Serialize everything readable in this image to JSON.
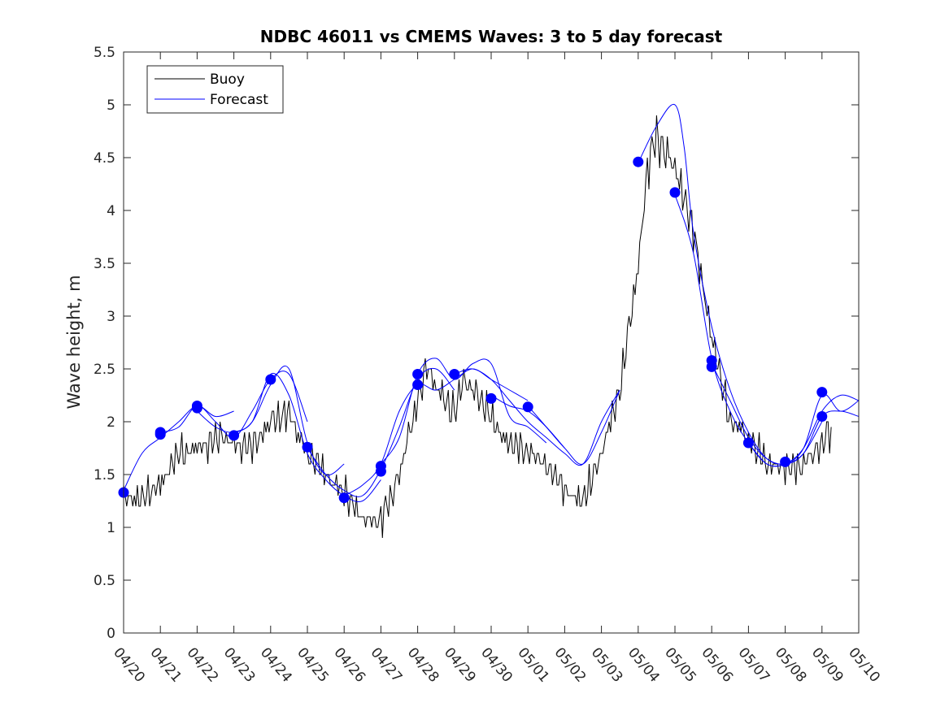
{
  "chart_data": {
    "type": "line",
    "title": "NDBC 46011 vs CMEMS Waves: 3 to 5 day forecast",
    "xlabel": "",
    "ylabel": "Wave height, m",
    "xlim": [
      "04/20",
      "05/10"
    ],
    "ylim": [
      0,
      5.5
    ],
    "yticks": [
      "0",
      "0.5",
      "1",
      "1.5",
      "2",
      "2.5",
      "3",
      "3.5",
      "4",
      "4.5",
      "5",
      "5.5"
    ],
    "xticks": [
      "04/20",
      "04/21",
      "04/22",
      "04/23",
      "04/24",
      "04/25",
      "04/26",
      "04/27",
      "04/28",
      "04/29",
      "04/30",
      "05/01",
      "05/02",
      "05/03",
      "05/04",
      "05/05",
      "05/06",
      "05/07",
      "05/08",
      "05/09",
      "05/10"
    ],
    "grid": false,
    "legend_position": "top-left",
    "series": [
      {
        "name": "Buoy",
        "color": "#000000",
        "points": [
          [
            "04/20 00:00",
            1.3
          ],
          [
            "04/20 12:00",
            1.25
          ],
          [
            "04/21 00:00",
            1.4
          ],
          [
            "04/21 12:00",
            1.7
          ],
          [
            "04/22 00:00",
            1.75
          ],
          [
            "04/22 12:00",
            1.85
          ],
          [
            "04/23 00:00",
            1.8
          ],
          [
            "04/23 12:00",
            1.75
          ],
          [
            "04/24 00:00",
            2.0
          ],
          [
            "04/24 12:00",
            2.1
          ],
          [
            "04/25 00:00",
            1.7
          ],
          [
            "04/25 12:00",
            1.5
          ],
          [
            "04/26 00:00",
            1.35
          ],
          [
            "04/26 12:00",
            1.1
          ],
          [
            "04/27 00:00",
            1.05
          ],
          [
            "04/27 12:00",
            1.5
          ],
          [
            "04/28 00:00",
            2.2
          ],
          [
            "04/28 06:00",
            2.55
          ],
          [
            "04/28 12:00",
            2.3
          ],
          [
            "04/29 00:00",
            2.1
          ],
          [
            "04/29 06:00",
            2.4
          ],
          [
            "04/29 12:00",
            2.3
          ],
          [
            "04/30 00:00",
            2.05
          ],
          [
            "04/30 12:00",
            1.8
          ],
          [
            "05/01 00:00",
            1.7
          ],
          [
            "05/01 12:00",
            1.6
          ],
          [
            "05/02 00:00",
            1.35
          ],
          [
            "05/02 12:00",
            1.25
          ],
          [
            "05/03 00:00",
            1.7
          ],
          [
            "05/03 12:00",
            2.3
          ],
          [
            "05/04 00:00",
            3.5
          ],
          [
            "05/04 06:00",
            4.4
          ],
          [
            "05/04 12:00",
            4.7
          ],
          [
            "05/05 00:00",
            4.4
          ],
          [
            "05/05 12:00",
            3.8
          ],
          [
            "05/06 00:00",
            2.8
          ],
          [
            "05/06 12:00",
            2.0
          ],
          [
            "05/07 00:00",
            1.85
          ],
          [
            "05/07 12:00",
            1.6
          ],
          [
            "05/08 00:00",
            1.55
          ],
          [
            "05/08 12:00",
            1.6
          ],
          [
            "05/09 00:00",
            1.8
          ],
          [
            "05/09 06:00",
            1.95
          ]
        ]
      },
      {
        "name": "Forecast",
        "color": "#0000ff",
        "segments": [
          [
            [
              "04/20 00:00",
              1.35
            ],
            [
              "04/20 12:00",
              1.7
            ],
            [
              "04/21 00:00",
              1.85
            ],
            [
              "04/21 12:00",
              2.0
            ],
            [
              "04/22 00:00",
              2.15
            ],
            [
              "04/22 12:00",
              2.05
            ],
            [
              "04/23 00:00",
              2.1
            ]
          ],
          [
            [
              "04/21 00:00",
              1.9
            ],
            [
              "04/21 12:00",
              1.95
            ],
            [
              "04/22 00:00",
              2.15
            ],
            [
              "04/22 12:00",
              2.0
            ],
            [
              "04/23 00:00",
              1.85
            ],
            [
              "04/23 12:00",
              2.1
            ],
            [
              "04/24 00:00",
              2.4
            ],
            [
              "04/24 12:00",
              2.45
            ],
            [
              "04/25 00:00",
              2.0
            ]
          ],
          [
            [
              "04/22 00:00",
              2.1
            ],
            [
              "04/22 12:00",
              1.95
            ],
            [
              "04/23 00:00",
              1.9
            ],
            [
              "04/23 12:00",
              2.0
            ],
            [
              "04/24 00:00",
              2.35
            ],
            [
              "04/24 12:00",
              2.5
            ],
            [
              "04/25 00:00",
              1.8
            ],
            [
              "04/25 12:00",
              1.5
            ],
            [
              "04/26 00:00",
              1.6
            ]
          ],
          [
            [
              "04/23 00:00",
              1.9
            ],
            [
              "04/23 12:00",
              2.0
            ],
            [
              "04/24 00:00",
              2.45
            ],
            [
              "04/24 12:00",
              2.25
            ],
            [
              "04/25 00:00",
              1.7
            ],
            [
              "04/25 12:00",
              1.45
            ],
            [
              "04/26 00:00",
              1.3
            ],
            [
              "04/26 12:00",
              1.25
            ],
            [
              "04/27 00:00",
              1.45
            ]
          ],
          [
            [
              "04/25 00:00",
              1.75
            ],
            [
              "04/25 12:00",
              1.5
            ],
            [
              "04/26 00:00",
              1.35
            ],
            [
              "04/26 12:00",
              1.3
            ],
            [
              "04/27 00:00",
              1.55
            ],
            [
              "04/27 12:00",
              1.95
            ],
            [
              "04/28 00:00",
              2.4
            ],
            [
              "04/28 12:00",
              2.5
            ],
            [
              "04/29 00:00",
              2.3
            ]
          ],
          [
            [
              "04/26 00:00",
              1.3
            ],
            [
              "04/26 12:00",
              1.4
            ],
            [
              "04/27 00:00",
              1.6
            ],
            [
              "04/27 12:00",
              2.1
            ],
            [
              "04/28 00:00",
              2.35
            ],
            [
              "04/28 12:00",
              2.3
            ],
            [
              "04/29 00:00",
              2.4
            ],
            [
              "04/29 12:00",
              2.5
            ],
            [
              "04/30 00:00",
              2.4
            ],
            [
              "04/30 12:00",
              2.3
            ],
            [
              "05/01 00:00",
              2.2
            ]
          ],
          [
            [
              "04/27 00:00",
              1.6
            ],
            [
              "04/27 12:00",
              1.85
            ],
            [
              "04/28 00:00",
              2.45
            ],
            [
              "04/28 12:00",
              2.6
            ],
            [
              "04/29 00:00",
              2.4
            ],
            [
              "04/29 12:00",
              2.55
            ],
            [
              "04/30 00:00",
              2.55
            ],
            [
              "04/30 12:00",
              2.05
            ],
            [
              "05/01 00:00",
              1.95
            ],
            [
              "05/01 12:00",
              1.8
            ]
          ],
          [
            [
              "04/29 00:00",
              2.45
            ],
            [
              "04/29 12:00",
              2.5
            ],
            [
              "04/30 00:00",
              2.4
            ],
            [
              "04/30 12:00",
              2.2
            ],
            [
              "05/01 00:00",
              2.0
            ],
            [
              "05/01 12:00",
              1.85
            ],
            [
              "05/02 00:00",
              1.7
            ],
            [
              "05/02 12:00",
              1.6
            ],
            [
              "05/03 00:00",
              2.0
            ],
            [
              "05/03 12:00",
              2.3
            ]
          ],
          [
            [
              "04/30 00:00",
              2.25
            ],
            [
              "04/30 12:00",
              2.15
            ],
            [
              "05/01 00:00",
              2.1
            ],
            [
              "05/01 12:00",
              1.95
            ],
            [
              "05/02 00:00",
              1.75
            ]
          ],
          [
            [
              "05/01 00:00",
              2.15
            ],
            [
              "05/01 12:00",
              1.95
            ],
            [
              "05/02 00:00",
              1.75
            ],
            [
              "05/02 12:00",
              1.6
            ],
            [
              "05/03 00:00",
              1.9
            ],
            [
              "05/03 12:00",
              2.3
            ]
          ],
          [
            [
              "05/04 00:00",
              4.45
            ],
            [
              "05/04 12:00",
              4.8
            ],
            [
              "05/05 00:00",
              5.0
            ],
            [
              "05/05 06:00",
              4.6
            ],
            [
              "05/05 12:00",
              3.8
            ],
            [
              "05/06 00:00",
              2.9
            ],
            [
              "05/06 12:00",
              2.3
            ],
            [
              "05/07 00:00",
              1.9
            ],
            [
              "05/07 12:00",
              1.65
            ],
            [
              "05/08 00:00",
              1.6
            ],
            [
              "05/08 12:00",
              1.7
            ],
            [
              "05/09 00:00",
              2.0
            ]
          ],
          [
            [
              "05/05 00:00",
              4.15
            ],
            [
              "05/05 12:00",
              3.6
            ],
            [
              "05/06 00:00",
              2.6
            ],
            [
              "05/06 12:00",
              2.1
            ],
            [
              "05/07 00:00",
              1.8
            ],
            [
              "05/07 12:00",
              1.6
            ],
            [
              "05/08 00:00",
              1.6
            ],
            [
              "05/08 12:00",
              1.75
            ],
            [
              "05/09 00:00",
              2.1
            ],
            [
              "05/09 12:00",
              2.25
            ],
            [
              "05/10 00:00",
              2.2
            ]
          ],
          [
            [
              "05/06 00:00",
              2.55
            ],
            [
              "05/06 12:00",
              2.2
            ],
            [
              "05/07 00:00",
              1.85
            ],
            [
              "05/07 12:00",
              1.65
            ],
            [
              "05/08 00:00",
              1.6
            ],
            [
              "05/08 12:00",
              1.7
            ],
            [
              "05/09 00:00",
              2.05
            ],
            [
              "05/09 12:00",
              2.1
            ],
            [
              "05/10 00:00",
              2.05
            ]
          ],
          [
            [
              "05/07 00:00",
              1.8
            ],
            [
              "05/07 12:00",
              1.6
            ],
            [
              "05/08 00:00",
              1.6
            ],
            [
              "05/08 12:00",
              1.75
            ],
            [
              "05/09 00:00",
              2.25
            ],
            [
              "05/09 12:00",
              2.1
            ],
            [
              "05/10 00:00",
              2.2
            ]
          ]
        ],
        "markers": [
          [
            "04/20 00:00",
            1.33
          ],
          [
            "04/21 00:00",
            1.88
          ],
          [
            "04/21 00:00",
            1.9
          ],
          [
            "04/22 00:00",
            2.13
          ],
          [
            "04/22 00:00",
            2.15
          ],
          [
            "04/23 00:00",
            1.87
          ],
          [
            "04/24 00:00",
            2.4
          ],
          [
            "04/25 00:00",
            1.76
          ],
          [
            "04/26 00:00",
            1.28
          ],
          [
            "04/27 00:00",
            1.53
          ],
          [
            "04/27 00:00",
            1.58
          ],
          [
            "04/28 00:00",
            2.35
          ],
          [
            "04/28 00:00",
            2.45
          ],
          [
            "04/29 00:00",
            2.45
          ],
          [
            "04/30 00:00",
            2.22
          ],
          [
            "05/01 00:00",
            2.14
          ],
          [
            "05/04 00:00",
            4.46
          ],
          [
            "05/05 00:00",
            4.17
          ],
          [
            "05/06 00:00",
            2.52
          ],
          [
            "05/06 00:00",
            2.58
          ],
          [
            "05/07 00:00",
            1.8
          ],
          [
            "05/08 00:00",
            1.62
          ],
          [
            "05/09 00:00",
            2.05
          ],
          [
            "05/09 00:00",
            2.28
          ]
        ]
      }
    ]
  }
}
